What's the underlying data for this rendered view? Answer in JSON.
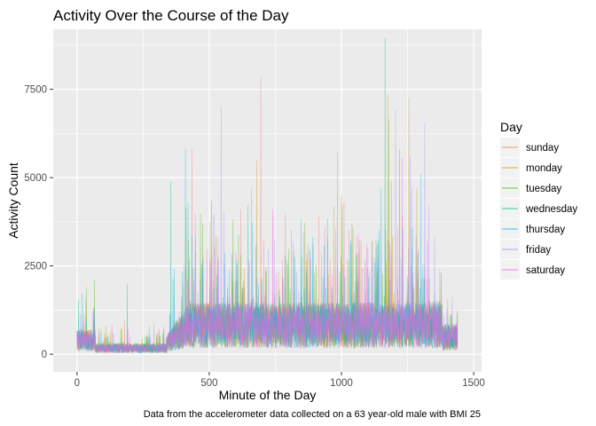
{
  "chart_data": {
    "type": "line",
    "title": "Activity Over the Course of the Day",
    "xlabel": "Minute of the Day",
    "ylabel": "Activity Count",
    "caption": "Data from the accelerometer data collected on a 63 year-old male with BMI 25",
    "xlim": [
      -90,
      1530
    ],
    "ylim": [
      -500,
      9200
    ],
    "x_ticks": [
      0,
      500,
      1000,
      1500
    ],
    "y_ticks": [
      0,
      2500,
      5000,
      7500
    ],
    "grid": true,
    "legend": {
      "title": "Day",
      "placement": "right",
      "entries": [
        "sunday",
        "monday",
        "tuesday",
        "wednesday",
        "thursday",
        "friday",
        "saturday"
      ]
    },
    "series": [
      {
        "name": "sunday",
        "color": "#f8766d",
        "peaks": [
          [
            435,
            5800
          ],
          [
            520,
            3100
          ],
          [
            620,
            4100
          ],
          [
            660,
            4700
          ],
          [
            695,
            7850
          ],
          [
            885,
            2700
          ],
          [
            1190,
            4900
          ],
          [
            1230,
            3900
          ]
        ]
      },
      {
        "name": "monday",
        "color": "#c49a00",
        "peaks": [
          [
            680,
            5500
          ],
          [
            1000,
            4500
          ],
          [
            1175,
            7350
          ],
          [
            1255,
            7250
          ],
          [
            1285,
            4700
          ],
          [
            1440,
            1900
          ]
        ]
      },
      {
        "name": "tuesday",
        "color": "#53b400",
        "peaks": [
          [
            425,
            2700
          ],
          [
            590,
            3800
          ],
          [
            1040,
            3700
          ],
          [
            1180,
            6650
          ]
        ]
      },
      {
        "name": "wednesday",
        "color": "#00c094",
        "peaks": [
          [
            190,
            2000
          ],
          [
            355,
            4900
          ],
          [
            1165,
            8950
          ],
          [
            1220,
            5800
          ]
        ]
      },
      {
        "name": "thursday",
        "color": "#00b6eb",
        "peaks": [
          [
            20,
            1720
          ],
          [
            410,
            5800
          ],
          [
            420,
            4300
          ],
          [
            1150,
            4700
          ],
          [
            1300,
            5100
          ]
        ]
      },
      {
        "name": "friday",
        "color": "#a58aff",
        "peaks": [
          [
            545,
            7000
          ],
          [
            1205,
            6900
          ],
          [
            1260,
            5600
          ],
          [
            1315,
            6550
          ],
          [
            1330,
            4200
          ]
        ]
      },
      {
        "name": "saturday",
        "color": "#fb61d7",
        "peaks": [
          [
            740,
            4100
          ],
          [
            985,
            5700
          ],
          [
            1010,
            4300
          ],
          [
            1230,
            5550
          ]
        ]
      }
    ]
  }
}
